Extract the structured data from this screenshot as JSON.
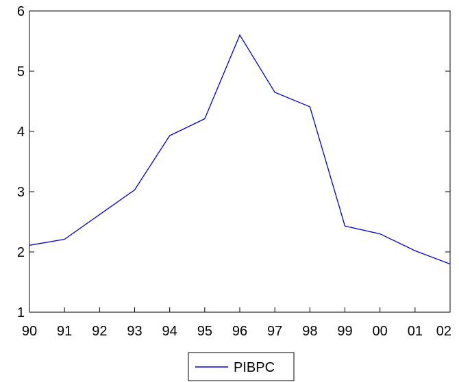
{
  "chart_data": {
    "type": "line",
    "title": "",
    "xlabel": "",
    "ylabel": "",
    "categories": [
      "90",
      "91",
      "92",
      "93",
      "94",
      "95",
      "96",
      "97",
      "98",
      "99",
      "00",
      "01",
      "02"
    ],
    "series": [
      {
        "name": "PIBPC",
        "color": "#0000CC",
        "values": [
          2.11,
          2.21,
          2.62,
          3.03,
          3.93,
          4.21,
          5.6,
          4.65,
          4.41,
          2.43,
          2.3,
          2.02,
          1.8
        ]
      }
    ],
    "ylim": [
      1,
      6
    ],
    "yticks": [
      "1",
      "2",
      "3",
      "4",
      "5",
      "6"
    ],
    "grid": false,
    "legend_position": "bottom-center"
  }
}
